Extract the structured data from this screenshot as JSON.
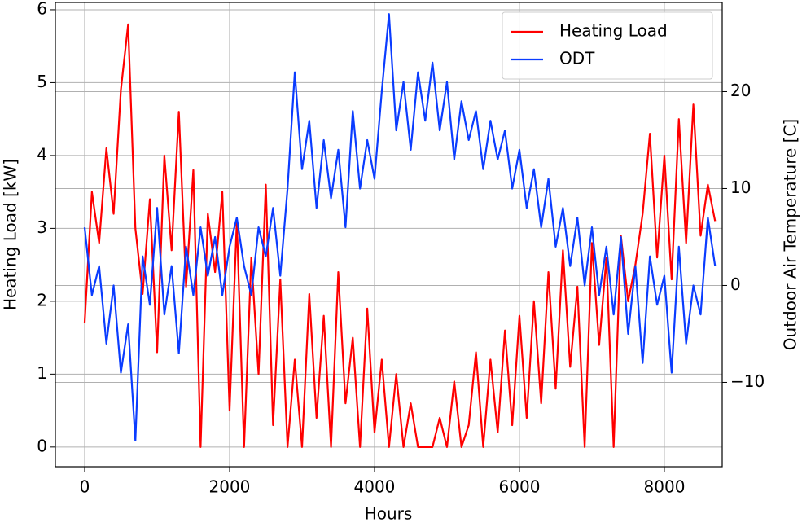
{
  "chart_data": {
    "type": "line",
    "x": [
      0,
      100,
      200,
      300,
      400,
      500,
      600,
      700,
      800,
      900,
      1000,
      1100,
      1200,
      1300,
      1400,
      1500,
      1600,
      1700,
      1800,
      1900,
      2000,
      2100,
      2200,
      2300,
      2400,
      2500,
      2600,
      2700,
      2800,
      2900,
      3000,
      3100,
      3200,
      3300,
      3400,
      3500,
      3600,
      3700,
      3800,
      3900,
      4000,
      4100,
      4200,
      4300,
      4400,
      4500,
      4600,
      4700,
      4800,
      4900,
      5000,
      5100,
      5200,
      5300,
      5400,
      5500,
      5600,
      5700,
      5800,
      5900,
      6000,
      6100,
      6200,
      6300,
      6400,
      6500,
      6600,
      6700,
      6800,
      6900,
      7000,
      7100,
      7200,
      7300,
      7400,
      7500,
      7600,
      7700,
      7800,
      7900,
      8000,
      8100,
      8200,
      8300,
      8400,
      8500,
      8600,
      8700
    ],
    "series": [
      {
        "name": "Heating Load",
        "color": "#ff0000",
        "axis": "y",
        "values": [
          1.7,
          3.5,
          2.8,
          4.1,
          3.2,
          4.9,
          5.8,
          3.0,
          2.1,
          3.4,
          1.3,
          4.0,
          2.7,
          4.6,
          2.2,
          3.8,
          0,
          3.2,
          2.4,
          3.5,
          0.5,
          3.1,
          0,
          2.6,
          1.0,
          3.6,
          0.3,
          2.3,
          0,
          1.2,
          0,
          2.1,
          0.4,
          1.8,
          0,
          2.4,
          0.6,
          1.5,
          0,
          1.9,
          0.2,
          1.2,
          0,
          1.0,
          0,
          0.6,
          0,
          0,
          0,
          0.4,
          0,
          0.9,
          0,
          0.3,
          1.3,
          0,
          1.2,
          0.2,
          1.6,
          0.3,
          1.8,
          0.4,
          2.0,
          0.6,
          2.4,
          0.8,
          2.7,
          1.1,
          2.2,
          0,
          2.8,
          1.4,
          2.6,
          0,
          2.9,
          2.0,
          2.5,
          3.2,
          4.3,
          2.6,
          4.0,
          2.3,
          4.5,
          2.8,
          4.7,
          2.9,
          3.6,
          3.1
        ]
      },
      {
        "name": "ODT",
        "color": "#0a3cff",
        "axis": "y2",
        "values": [
          6,
          -1,
          2,
          -6,
          0,
          -9,
          -4,
          -16,
          3,
          -2,
          8,
          -3,
          2,
          -7,
          4,
          -1,
          6,
          1,
          5,
          -1,
          4,
          7,
          2,
          -1,
          6,
          3,
          8,
          1,
          10,
          22,
          12,
          17,
          8,
          15,
          9,
          14,
          6,
          18,
          10,
          15,
          11,
          20,
          28,
          16,
          21,
          14,
          22,
          17,
          23,
          16,
          21,
          13,
          19,
          15,
          18,
          12,
          17,
          13,
          16,
          10,
          14,
          8,
          12,
          6,
          11,
          4,
          8,
          2,
          7,
          0,
          6,
          -1,
          4,
          -3,
          5,
          -5,
          2,
          -8,
          3,
          -2,
          1,
          -9,
          4,
          -6,
          0,
          -3,
          7,
          2
        ]
      }
    ],
    "xlabel": "Hours",
    "ylabel": "Heating Load [kW]",
    "y2label": "Outdoor Air Temperature [C]",
    "xlim": [
      -404,
      8798
    ],
    "xticks": [
      0,
      2000,
      4000,
      6000,
      8000
    ],
    "ylim": [
      -0.27,
      6.1
    ],
    "yticks": [
      0,
      1,
      2,
      3,
      4,
      5,
      6
    ],
    "y2lim": [
      -18.7,
      29.2
    ],
    "y2ticks": [
      {
        "value": -10,
        "label": "−10"
      },
      0,
      10,
      20
    ],
    "grid": true,
    "legend": "upper right"
  }
}
